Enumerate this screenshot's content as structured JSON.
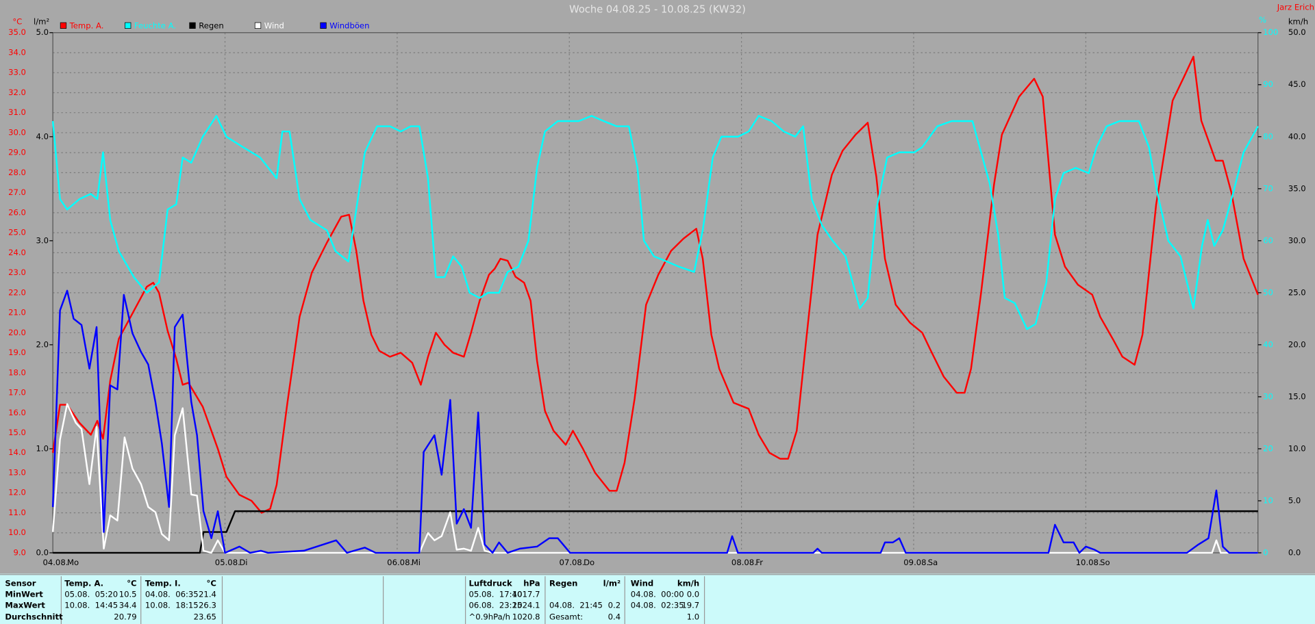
{
  "chart_data": {
    "type": "line",
    "title": "Woche 04.08.25 - 10.08.25 (KW32)",
    "author": "Jarz Erich",
    "y_label": "°C",
    "y2_label": "l/m²",
    "y3_label": "km/h",
    "y4_label": "%",
    "grid": true,
    "xlim": [
      0,
      168
    ],
    "xticks": [
      {
        "value": 0,
        "label": "04.08."
      },
      {
        "value": 24,
        "label": "05.08."
      },
      {
        "value": 48,
        "label": "06.08."
      },
      {
        "value": 72,
        "label": "07.08."
      },
      {
        "value": 96,
        "label": "08.08."
      },
      {
        "value": 120,
        "label": "09.08."
      },
      {
        "value": 144,
        "label": "10.08."
      }
    ],
    "xtick_days": [
      "Mo",
      "Di",
      "Mi",
      "Do",
      "Fr",
      "Sa",
      "So"
    ],
    "ylim": [
      9,
      35
    ],
    "yticks": [
      {
        "value": 9,
        "label": "9.0"
      },
      {
        "value": 10,
        "label": "10.0"
      },
      {
        "value": 11,
        "label": "11.0"
      },
      {
        "value": 12,
        "label": "12.0"
      },
      {
        "value": 13,
        "label": "13.0"
      },
      {
        "value": 14,
        "label": "14.0"
      },
      {
        "value": 15,
        "label": "15.0"
      },
      {
        "value": 16,
        "label": "16.0"
      },
      {
        "value": 17,
        "label": "17.0"
      },
      {
        "value": 18,
        "label": "18.0"
      },
      {
        "value": 19,
        "label": "19.0"
      },
      {
        "value": 20,
        "label": "20.0"
      },
      {
        "value": 21,
        "label": "21.0"
      },
      {
        "value": 22,
        "label": "22.0"
      },
      {
        "value": 23,
        "label": "23.0"
      },
      {
        "value": 24,
        "label": "24.0"
      },
      {
        "value": 25,
        "label": "25.0"
      },
      {
        "value": 26,
        "label": "26.0"
      },
      {
        "value": 27,
        "label": "27.0"
      },
      {
        "value": 28,
        "label": "28.0"
      },
      {
        "value": 29,
        "label": "29.0"
      },
      {
        "value": 30,
        "label": "30.0"
      },
      {
        "value": 31,
        "label": "31.0"
      },
      {
        "value": 32,
        "label": "32.0"
      },
      {
        "value": 33,
        "label": "33.0"
      },
      {
        "value": 34,
        "label": "34.0"
      },
      {
        "value": 35,
        "label": "35.0"
      }
    ],
    "y2lim": [
      0,
      5
    ],
    "y2ticks": [
      {
        "value": 0,
        "label": "0.0"
      },
      {
        "value": 1,
        "label": "1.0"
      },
      {
        "value": 2,
        "label": "2.0"
      },
      {
        "value": 3,
        "label": "3.0"
      },
      {
        "value": 4,
        "label": "4.0"
      },
      {
        "value": 5,
        "label": "5.0"
      }
    ],
    "y3lim": [
      0,
      50
    ],
    "y3ticks": [
      {
        "value": 0,
        "label": "0.0"
      },
      {
        "value": 5,
        "label": "5.0"
      },
      {
        "value": 10,
        "label": "10.0"
      },
      {
        "value": 15,
        "label": "15.0"
      },
      {
        "value": 20,
        "label": "20.0"
      },
      {
        "value": 25,
        "label": "25.0"
      },
      {
        "value": 30,
        "label": "30.0"
      },
      {
        "value": 35,
        "label": "35.0"
      },
      {
        "value": 40,
        "label": "40.0"
      },
      {
        "value": 45,
        "label": "45.0"
      },
      {
        "value": 50,
        "label": "50.0"
      }
    ],
    "y4lim": [
      0,
      100
    ],
    "y4ticks": [
      0,
      10,
      20,
      30,
      40,
      50,
      60,
      70,
      80,
      90,
      100
    ],
    "series": [
      {
        "name": "Temp. A.",
        "color": "#ff0000",
        "axis": "y",
        "x": [
          0,
          1,
          2,
          3.7,
          5.3,
          6.2,
          7,
          8,
          9.2,
          11.3,
          13.1,
          14,
          14.8,
          16,
          17.2,
          18.1,
          18.9,
          20.9,
          23,
          24.2,
          26,
          27.7,
          29.1,
          30.3,
          31.2,
          32.7,
          34.4,
          36.1,
          38.2,
          40.2,
          41.3,
          42.3,
          43.3,
          44.4,
          45.5,
          47,
          48.5,
          50.1,
          51.3,
          52.3,
          53.4,
          54.6,
          55.8,
          57.3,
          58.3,
          59.5,
          60.8,
          61.6,
          62.4,
          63.4,
          64.5,
          65.7,
          66.6,
          67.5,
          68.6,
          69.8,
          71.5,
          72.5,
          73.9,
          75.6,
          77.6,
          78.6,
          79.7,
          81.1,
          82.7,
          84.4,
          86.2,
          87.9,
          89.7,
          90.6,
          91.8,
          92.9,
          94.9,
          97,
          98.4,
          99.9,
          101.4,
          102.5,
          103.7,
          105.1,
          106.6,
          108.6,
          110.1,
          111.9,
          113.6,
          114.8,
          116,
          117.5,
          119.5,
          121.2,
          122.4,
          124.2,
          126,
          127.1,
          128,
          129.4,
          131.2,
          132.3,
          134.7,
          136.8,
          138,
          139.7,
          141.1,
          142.9,
          144.9,
          146,
          147.9,
          149.1,
          150.8,
          151.9,
          153.8,
          156.1,
          157.7,
          159,
          160.1,
          161,
          162.1,
          163.1,
          164.3,
          166,
          168
        ],
        "values": [
          14.0,
          16.4,
          16.4,
          15.5,
          14.9,
          15.6,
          14.7,
          17.6,
          19.7,
          21.1,
          22.3,
          22.5,
          22.0,
          20.1,
          18.7,
          17.4,
          17.5,
          16.3,
          14.2,
          12.8,
          11.9,
          11.6,
          11.0,
          11.2,
          12.4,
          16.5,
          20.8,
          23.0,
          24.5,
          25.8,
          25.9,
          24.1,
          21.6,
          19.9,
          19.1,
          18.8,
          19.0,
          18.5,
          17.4,
          18.8,
          20.0,
          19.4,
          19.0,
          18.8,
          20.0,
          21.6,
          22.9,
          23.2,
          23.7,
          23.6,
          22.8,
          22.5,
          21.6,
          18.6,
          16.1,
          15.1,
          14.4,
          15.1,
          14.2,
          13.0,
          12.1,
          12.1,
          13.5,
          16.7,
          21.4,
          22.9,
          24.1,
          24.7,
          25.2,
          23.7,
          19.9,
          18.2,
          16.5,
          16.2,
          14.9,
          14.0,
          13.7,
          13.7,
          15.1,
          19.9,
          24.9,
          27.9,
          29.1,
          29.9,
          30.5,
          27.8,
          23.7,
          21.4,
          20.5,
          20.0,
          19.1,
          17.8,
          17.0,
          17.0,
          18.2,
          22.0,
          27.4,
          29.9,
          31.8,
          32.7,
          31.8,
          24.9,
          23.3,
          22.4,
          21.9,
          20.8,
          19.6,
          18.8,
          18.4,
          19.9,
          26.4,
          31.6,
          32.8,
          33.8,
          30.6,
          29.7,
          28.6,
          28.6,
          27.0,
          23.7,
          21.9
        ]
      },
      {
        "name": "Feuchte A.",
        "color": "#00ffff",
        "axis": "y4",
        "x": [
          0,
          1,
          2,
          3.7,
          5.3,
          6.2,
          7,
          8,
          9.2,
          11.3,
          13.1,
          14.8,
          16,
          17.2,
          18.1,
          19.3,
          20.9,
          22.8,
          24.2,
          26.5,
          28.9,
          31.2,
          32,
          33,
          34.4,
          35.9,
          38.2,
          39.4,
          41.2,
          42.3,
          43.5,
          45.2,
          47,
          48.5,
          49.9,
          51.1,
          52.3,
          53.4,
          54.6,
          55.8,
          57,
          58.1,
          59.5,
          60.7,
          62.2,
          63.4,
          64.9,
          66.3,
          67.5,
          68.6,
          70.4,
          73.3,
          75.1,
          76.8,
          78.6,
          80.3,
          81.5,
          82.4,
          83.8,
          85.6,
          87.3,
          89.4,
          90.6,
          92,
          93.2,
          95.5,
          97,
          98.4,
          100.2,
          101.9,
          103.5,
          104.6,
          105.8,
          107.2,
          108.7,
          110.5,
          111.3,
          112.5,
          113.6,
          114.8,
          116.3,
          118,
          120.1,
          121.2,
          123.3,
          125.3,
          127.1,
          128.2,
          129.4,
          130.6,
          131.8,
          132.7,
          134.1,
          135.8,
          137,
          138.5,
          139.7,
          140.9,
          142.6,
          144.4,
          145.5,
          146.9,
          148.7,
          151.4,
          152.8,
          154,
          155.5,
          157.2,
          159,
          160.2,
          161,
          161.9,
          163.1,
          164.5,
          166,
          168
        ],
        "values": [
          83,
          68,
          66,
          68,
          69,
          68,
          77,
          64,
          58,
          53,
          50,
          52,
          66,
          67,
          76,
          75,
          80,
          84,
          80,
          78,
          76,
          72,
          81,
          81,
          68,
          64,
          62,
          58,
          56,
          66,
          77,
          82,
          82,
          81,
          82,
          82,
          72,
          53,
          53,
          57,
          55,
          50,
          49,
          50,
          50,
          54,
          55,
          60,
          74,
          81,
          83,
          83,
          84,
          83,
          82,
          82,
          74,
          60,
          57,
          56,
          55,
          54,
          62,
          76,
          80,
          80,
          81,
          84,
          83,
          81,
          80,
          82,
          68,
          63,
          60,
          57,
          53,
          47,
          49,
          66,
          76,
          77,
          77,
          78,
          82,
          83,
          83,
          83,
          77,
          71,
          61,
          49,
          48,
          43,
          44,
          52,
          68,
          73,
          74,
          73,
          78,
          82,
          83,
          83,
          78,
          69,
          60,
          57,
          47,
          59,
          64,
          59,
          62,
          69,
          77,
          82
        ]
      },
      {
        "name": "Regen",
        "color": "#000000",
        "axis": "y2",
        "x": [
          0,
          20.5,
          21,
          24.2,
          25.4,
          168
        ],
        "values": [
          0,
          0,
          0.2,
          0.2,
          0.4,
          0.4
        ]
      },
      {
        "name": "Wind",
        "color": "#ffffff",
        "axis": "y3",
        "x": [
          0,
          1,
          2,
          3.2,
          4,
          5.1,
          6.1,
          7.1,
          8,
          9,
          10,
          11.1,
          12.3,
          13.3,
          14.3,
          15.2,
          16.2,
          17,
          18.1,
          19.3,
          20.1,
          21,
          22.1,
          23,
          24,
          51.1,
          52.3,
          53.2,
          54.2,
          55.4,
          56.3,
          57.3,
          58.3,
          59.3,
          60.2,
          61.3,
          161.6,
          162.2,
          162.8,
          168
        ],
        "values": [
          2.0,
          10.9,
          14.3,
          12.5,
          11.9,
          6.6,
          12.1,
          0.4,
          3.6,
          3.1,
          11.1,
          8.1,
          6.6,
          4.4,
          3.9,
          1.8,
          1.2,
          11.3,
          13.9,
          5.6,
          5.5,
          0.2,
          0,
          1.2,
          0,
          0,
          1.9,
          1.2,
          1.6,
          3.9,
          0.3,
          0.4,
          0.2,
          2.4,
          0.2,
          0,
          0,
          1.2,
          0,
          0
        ]
      },
      {
        "name": "Windböen",
        "color": "#0000ff",
        "axis": "y3",
        "x": [
          0,
          1,
          2,
          2.9,
          4,
          5.1,
          6.1,
          7.1,
          8,
          9,
          9.9,
          11.1,
          12.3,
          13.3,
          14.3,
          15.2,
          16.2,
          17,
          18.1,
          19.3,
          20.1,
          21,
          22.1,
          23,
          24,
          26,
          27.5,
          29,
          30,
          35,
          39.5,
          41,
          43.5,
          45,
          51.1,
          51.7,
          53.2,
          54.2,
          55.4,
          56.3,
          57.3,
          58.3,
          59.3,
          60.2,
          61.3,
          62.2,
          63.4,
          65.1,
          67.5,
          69.2,
          70.4,
          72.1,
          94,
          94.7,
          95.5,
          106,
          106.6,
          107.2,
          115.4,
          116,
          117.1,
          118,
          118.9,
          138.8,
          139.7,
          140.9,
          142.3,
          143.1,
          144,
          145.2,
          146,
          158.1,
          159.7,
          161.1,
          162.2,
          163.1,
          164,
          168
        ],
        "values": [
          4.4,
          23.3,
          25.2,
          22.5,
          21.9,
          17.7,
          21.7,
          2.0,
          16.1,
          15.7,
          24.8,
          21.1,
          19.3,
          18.1,
          14.5,
          10.5,
          4.4,
          21.7,
          22.9,
          14.5,
          11.3,
          4.0,
          1.4,
          4.0,
          0,
          0.6,
          0,
          0.2,
          0,
          0.2,
          1.2,
          0,
          0.5,
          0,
          0,
          9.7,
          11.3,
          7.5,
          14.7,
          2.8,
          4.2,
          2.4,
          13.5,
          0.8,
          0,
          1.0,
          0,
          0.4,
          0.6,
          1.4,
          1.4,
          0,
          0,
          1.6,
          0,
          0,
          0.4,
          0,
          0,
          1.0,
          1.0,
          1.4,
          0,
          0,
          2.7,
          1.0,
          1.0,
          0,
          0.6,
          0.3,
          0,
          0,
          0.8,
          1.4,
          6.0,
          0.6,
          0,
          0
        ]
      }
    ]
  },
  "stats": {
    "row_labels": [
      "Sensor",
      "MinWert",
      "MaxWert",
      "Durchschnitt"
    ],
    "columns": [
      {
        "name": "Temp. A.",
        "unit": "°C",
        "rows": [
          {
            "label": "05.08.  05:20",
            "value": "10.5"
          },
          {
            "label": "10.08.  14:45",
            "value": "34.4"
          },
          {
            "value": "20.79"
          }
        ]
      },
      {
        "name": "Temp. I.",
        "unit": "°C",
        "rows": [
          {
            "label": "04.08.  06:35",
            "value": "21.4"
          },
          {
            "label": "10.08.  18:15",
            "value": "26.3"
          },
          {
            "value": "23.65"
          }
        ]
      },
      {
        "name": "Luftdruck",
        "unit": "hPa",
        "rows": [
          {
            "label": "05.08.  17:40",
            "value": "1017.7"
          },
          {
            "label": "06.08.  23:25",
            "value": "1024.1"
          },
          {
            "label": "^0.9hPa/h",
            "value": "1020.8"
          }
        ]
      },
      {
        "name": "Regen",
        "unit": "l/m²",
        "rows": [
          null,
          {
            "label": "04.08.  21:45",
            "value": "0.2"
          },
          {
            "label": "Gesamt:",
            "value": "0.4"
          }
        ]
      },
      {
        "name": "Wind",
        "unit": "km/h",
        "rows": [
          {
            "label": "04.08.  00:00",
            "value": "0.0"
          },
          {
            "label": "04.08.  02:35",
            "value": "19.7"
          },
          {
            "value": "1.0"
          }
        ]
      }
    ]
  }
}
